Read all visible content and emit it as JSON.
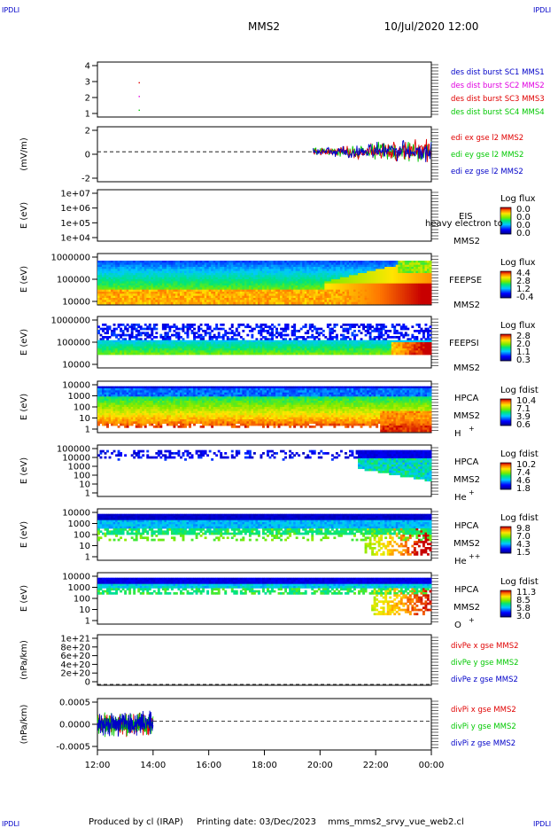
{
  "header": {
    "corner_tl": "IPDLI",
    "corner_tr": "IPDLI",
    "corner_bl": "IPDLI",
    "corner_br": "IPDLI",
    "spacecraft": "MMS2",
    "datetime": "10/Jul/2020 12:00"
  },
  "footer": {
    "produced_by": "Produced by cl (IRAP)",
    "printing_date": "Printing date: 03/Dec/2023",
    "filename": "mms_mms2_srvy_vue_web2.cl"
  },
  "colors": {
    "mms1": "#0000c8",
    "mms2": "#e000e0",
    "mms3": "#e00000",
    "mms4": "#00c800",
    "x": "#e00000",
    "y": "#00c800",
    "z": "#0000c8"
  },
  "chart_data": [
    {
      "type": "scatter",
      "panel": "burst",
      "y_ticks": [
        "4",
        "3",
        "2",
        "1"
      ],
      "ylim": [
        0.5,
        4.5
      ],
      "points": [
        {
          "x": "13:30",
          "y": 2,
          "series": "MMS2"
        },
        {
          "x": "13:30",
          "y": 3,
          "series": "MMS3"
        },
        {
          "x": "13:30",
          "y": 1,
          "series": "MMS4"
        }
      ],
      "legend": [
        {
          "text": "des dist burst SC1 MMS1",
          "color": "#0000c8"
        },
        {
          "text": "des dist burst SC2 MMS2",
          "color": "#e000e0"
        },
        {
          "text": "des dist burst SC3 MMS3",
          "color": "#e00000"
        },
        {
          "text": "des dist burst SC4 MMS4",
          "color": "#00c800"
        }
      ]
    },
    {
      "type": "line",
      "panel": "edi",
      "ylabel": "(mV/m)",
      "y_ticks": [
        "2",
        "0",
        "-2"
      ],
      "ylim": [
        -3,
        2.5
      ],
      "data_range": [
        "19:45",
        "00:00"
      ],
      "zero_line": true,
      "legend": [
        {
          "text": "edi ex gse l2 MMS2",
          "color": "#e00000"
        },
        {
          "text": "edi ey gse l2 MMS2",
          "color": "#00c800"
        },
        {
          "text": "edi ez gse l2 MMS2",
          "color": "#0000c8"
        }
      ]
    },
    {
      "type": "heatmap",
      "panel": "eis",
      "ylabel": "E (eV)",
      "y_ticks": [
        "1e+07",
        "1e+06",
        "1e+05",
        "1e+04"
      ],
      "log": true,
      "labels": [
        "EIS",
        "MMS2"
      ],
      "overlay_text": "heavy electron to",
      "colorbar": {
        "title": "Log flux",
        "ticks": [
          "0.0",
          "0.0",
          "0.0",
          "0.0"
        ]
      }
    },
    {
      "type": "heatmap",
      "panel": "feeps-e",
      "ylabel": "E (eV)",
      "y_ticks": [
        "1000000",
        "100000",
        "10000"
      ],
      "log": true,
      "labels": [
        "FEEPSE",
        "MMS2"
      ],
      "colorbar": {
        "title": "Log flux",
        "ticks": [
          "4.4",
          "2.8",
          "1.2",
          "-0.4"
        ]
      }
    },
    {
      "type": "heatmap",
      "panel": "feeps-i",
      "ylabel": "E (eV)",
      "y_ticks": [
        "1000000",
        "100000",
        "10000"
      ],
      "log": true,
      "labels": [
        "FEEPSI",
        "MMS2"
      ],
      "colorbar": {
        "title": "Log flux",
        "ticks": [
          "2.8",
          "2.0",
          "1.1",
          "0.3"
        ]
      }
    },
    {
      "type": "heatmap",
      "panel": "hpca-h",
      "ylabel": "E (eV)",
      "y_ticks": [
        "10000",
        "1000",
        "100",
        "10",
        "1"
      ],
      "log": true,
      "labels": [
        "HPCA",
        "MMS2",
        "H",
        "+"
      ],
      "colorbar": {
        "title": "Log fdist",
        "ticks": [
          "10.4",
          "7.1",
          "3.9",
          "0.6"
        ]
      }
    },
    {
      "type": "heatmap",
      "panel": "hpca-he1",
      "ylabel": "E (eV)",
      "y_ticks": [
        "100000",
        "10000",
        "1000",
        "100",
        "10",
        "1"
      ],
      "log": true,
      "labels": [
        "HPCA",
        "MMS2",
        "He",
        "+"
      ],
      "colorbar": {
        "title": "Log fdist",
        "ticks": [
          "10.2",
          "7.4",
          "4.6",
          "1.8"
        ]
      }
    },
    {
      "type": "heatmap",
      "panel": "hpca-he2",
      "ylabel": "E (eV)",
      "y_ticks": [
        "10000",
        "1000",
        "100",
        "10",
        "1"
      ],
      "log": true,
      "labels": [
        "HPCA",
        "MMS2",
        "He",
        "++"
      ],
      "colorbar": {
        "title": "Log fdist",
        "ticks": [
          "9.8",
          "7.0",
          "4.3",
          "1.5"
        ]
      }
    },
    {
      "type": "heatmap",
      "panel": "hpca-o",
      "ylabel": "E (eV)",
      "y_ticks": [
        "10000",
        "1000",
        "100",
        "10",
        "1"
      ],
      "log": true,
      "labels": [
        "HPCA",
        "MMS2",
        "O",
        "+"
      ],
      "colorbar": {
        "title": "Log fdist",
        "ticks": [
          "11.3",
          "8.5",
          "5.8",
          "3.0"
        ]
      }
    },
    {
      "type": "line",
      "panel": "divpe",
      "ylabel": "(nPa/km)",
      "y_ticks": [
        "1e+21",
        "8e+20",
        "6e+20",
        "4e+20",
        "2e+20",
        "0"
      ],
      "ylim": [
        -2e+19,
        1.1e+21
      ],
      "zero_line": true,
      "legend": [
        {
          "text": "divPe x gse MMS2",
          "color": "#e00000"
        },
        {
          "text": "divPe y gse MMS2",
          "color": "#00c800"
        },
        {
          "text": "divPe z gse MMS2",
          "color": "#0000c8"
        }
      ]
    },
    {
      "type": "line",
      "panel": "divpi",
      "ylabel": "(nPa/km)",
      "y_ticks": [
        "0.0005",
        "0.0000",
        "-0.0005"
      ],
      "ylim": [
        -0.00095,
        0.00075
      ],
      "data_range": [
        "12:00",
        "14:00"
      ],
      "zero_line": true,
      "legend": [
        {
          "text": "divPi x gse MMS2",
          "color": "#e00000"
        },
        {
          "text": "divPi y gse MMS2",
          "color": "#00c800"
        },
        {
          "text": "divPi z gse MMS2",
          "color": "#0000c8"
        }
      ]
    }
  ],
  "x_axis": {
    "ticks": [
      "12:00",
      "14:00",
      "16:00",
      "18:00",
      "20:00",
      "22:00",
      "00:00"
    ]
  }
}
